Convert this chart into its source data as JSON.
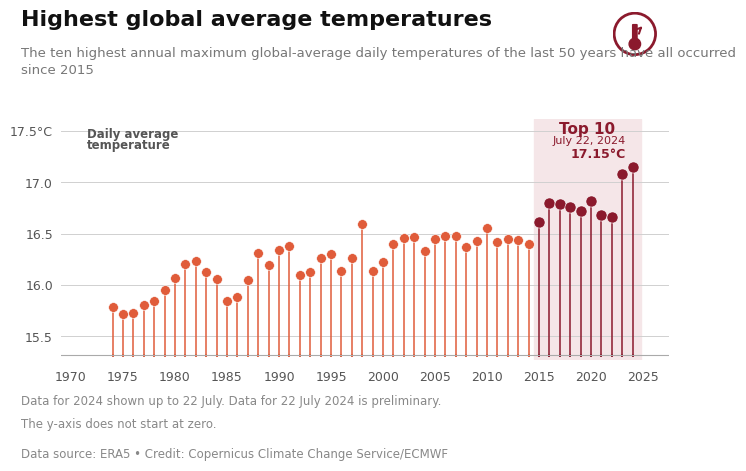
{
  "title": "Highest global average temperatures",
  "subtitle": "The ten highest annual maximum global-average daily temperatures of the last 50 years have all occurred\nsince 2015",
  "ylabel_line1": "Daily average",
  "ylabel_line2": "temperature",
  "footnote1": "Data for 2024 shown up to 22 July. Data for 22 July 2024 is preliminary.",
  "footnote2": "The y-axis does not start at zero.",
  "source": "Data source: ERA5 • Credit: Copernicus Climate Change Service/ECMWF",
  "annotation_label": "July 22, 2024",
  "annotation_value": "17.15°C",
  "top10_label": "Top 10",
  "top10_start": 2015,
  "top10_end": 2024,
  "ylim": [
    15.27,
    17.62
  ],
  "yticks": [
    15.5,
    16.0,
    16.5,
    17.0,
    17.5
  ],
  "ytick_labels": [
    "15.5",
    "16.0",
    "16.5",
    "17.0",
    "17.5°C"
  ],
  "baseline": 15.3,
  "color_regular": "#e05c3a",
  "color_top10": "#8b1a2d",
  "color_top10_bg": "#f5e6e8",
  "years": [
    1974,
    1975,
    1976,
    1977,
    1978,
    1979,
    1980,
    1981,
    1982,
    1983,
    1984,
    1985,
    1986,
    1987,
    1988,
    1989,
    1990,
    1991,
    1992,
    1993,
    1994,
    1995,
    1996,
    1997,
    1998,
    1999,
    2000,
    2001,
    2002,
    2003,
    2004,
    2005,
    2006,
    2007,
    2008,
    2009,
    2010,
    2011,
    2012,
    2013,
    2014,
    2015,
    2016,
    2017,
    2018,
    2019,
    2020,
    2021,
    2022,
    2023,
    2024
  ],
  "values": [
    15.78,
    15.72,
    15.73,
    15.8,
    15.84,
    15.95,
    16.07,
    16.2,
    16.23,
    16.13,
    16.06,
    15.84,
    15.88,
    16.05,
    16.31,
    16.19,
    16.34,
    16.38,
    16.1,
    16.13,
    16.26,
    16.3,
    16.14,
    16.26,
    16.59,
    16.14,
    16.22,
    16.4,
    16.46,
    16.47,
    16.33,
    16.45,
    16.48,
    16.48,
    16.37,
    16.43,
    16.55,
    16.42,
    16.45,
    16.44,
    16.4,
    16.61,
    16.8,
    16.79,
    16.76,
    16.72,
    16.82,
    16.68,
    16.66,
    17.08,
    17.15
  ],
  "dashed_bottom": 15.35,
  "title_fontsize": 16,
  "subtitle_fontsize": 9.5,
  "tick_fontsize": 9,
  "note_fontsize": 8.5,
  "bg_color": "#ffffff",
  "xticks": [
    1970,
    1975,
    1980,
    1985,
    1990,
    1995,
    2000,
    2005,
    2010,
    2015,
    2020,
    2025
  ],
  "xlim": [
    1969.0,
    2027.5
  ]
}
